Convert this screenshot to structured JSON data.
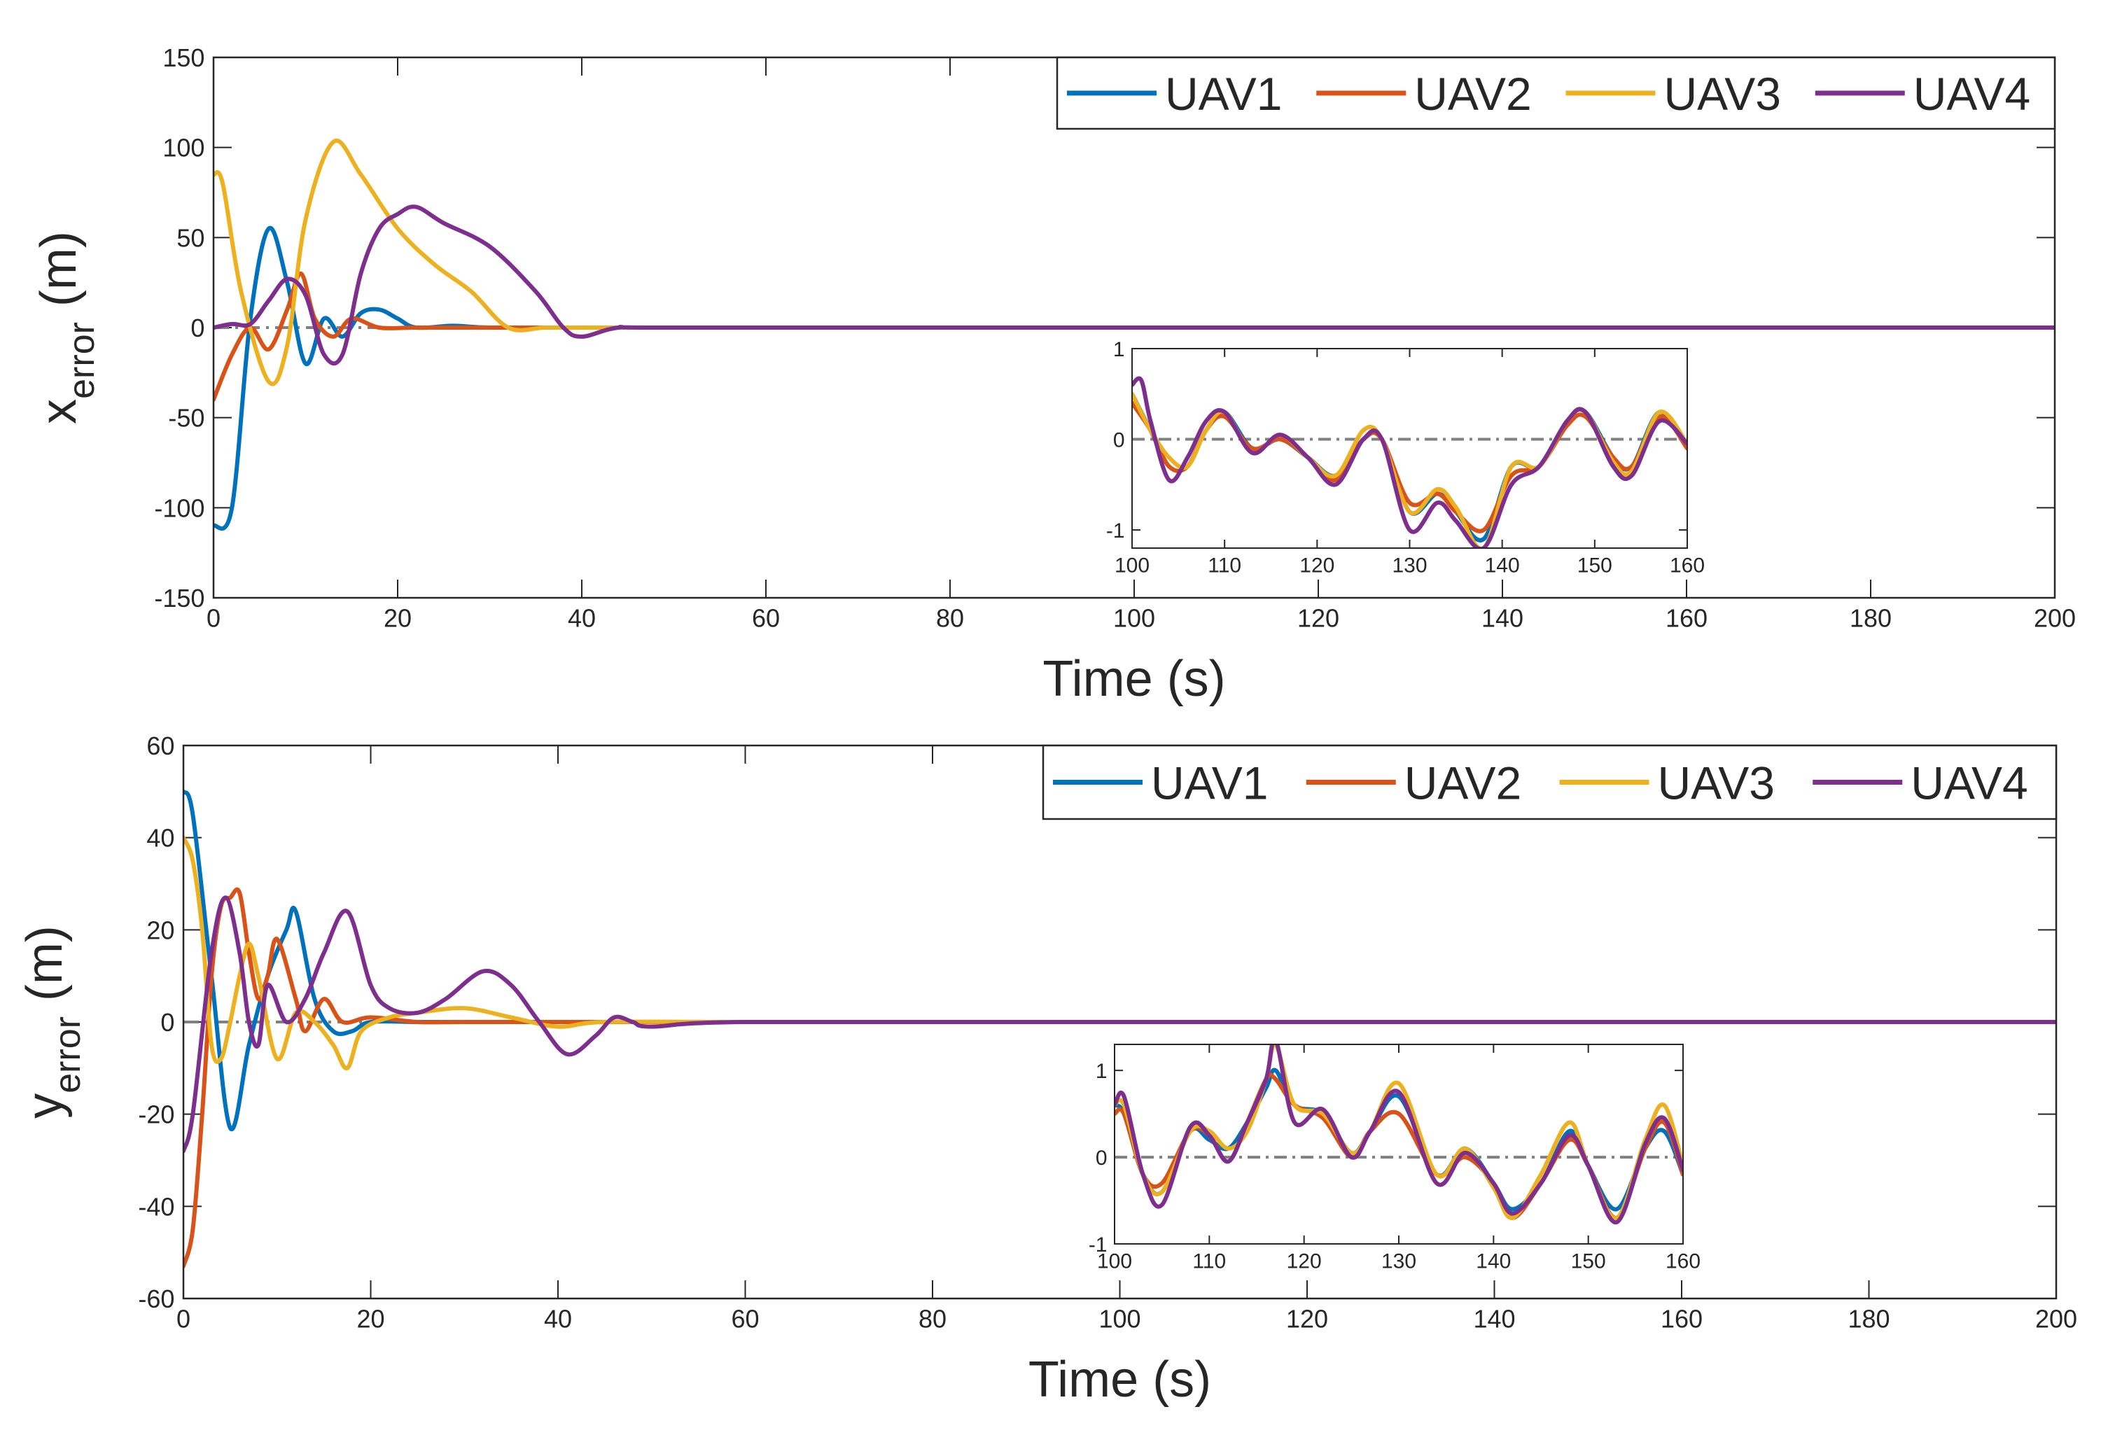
{
  "colors": {
    "UAV1": "#0072BD",
    "UAV2": "#D95319",
    "UAV3": "#EDB120",
    "UAV4": "#7E2F8E",
    "reference": "#808080"
  },
  "chart_data": [
    {
      "type": "line",
      "id": "x-error",
      "ylabel_base": "x",
      "ylabel_sub": "error",
      "ylabel_unit": "(m)",
      "xlabel": "Time (s)",
      "xlim": [
        0,
        200
      ],
      "ylim": [
        -150,
        150
      ],
      "xticks": [
        0,
        20,
        40,
        60,
        80,
        100,
        120,
        140,
        160,
        180,
        200
      ],
      "yticks": [
        -150,
        -100,
        -50,
        0,
        50,
        100,
        150
      ],
      "legend": {
        "placement": "top-right",
        "entries": [
          "UAV1",
          "UAV2",
          "UAV3",
          "UAV4"
        ]
      },
      "reference_line": 0,
      "series": [
        {
          "name": "UAV1",
          "x": [
            0,
            2,
            4,
            6,
            8,
            10,
            12,
            14,
            16,
            18,
            20,
            22,
            26,
            30,
            40,
            60,
            100,
            140,
            200
          ],
          "y": [
            -110,
            -100,
            5,
            55,
            25,
            -20,
            5,
            -5,
            8,
            10,
            5,
            0,
            1,
            0,
            0,
            0,
            0,
            0,
            0
          ]
        },
        {
          "name": "UAV2",
          "x": [
            0,
            2,
            4,
            6,
            8,
            9.5,
            11,
            13,
            15,
            18,
            22,
            30,
            40,
            60,
            100,
            200
          ],
          "y": [
            -40,
            -15,
            0,
            -12,
            10,
            30,
            5,
            -5,
            5,
            0,
            0,
            0,
            0,
            0,
            0,
            0
          ]
        },
        {
          "name": "UAV3",
          "x": [
            0,
            1,
            3,
            6,
            8,
            10,
            13,
            16,
            20,
            24,
            28,
            32,
            36,
            40,
            44,
            60,
            100,
            200
          ],
          "y": [
            85,
            80,
            20,
            -30,
            -10,
            60,
            103,
            85,
            55,
            35,
            20,
            0,
            0,
            0,
            0,
            0,
            0,
            0
          ]
        },
        {
          "name": "UAV4",
          "x": [
            0,
            2,
            4,
            6,
            8,
            10,
            12,
            14,
            16,
            18,
            20,
            22,
            25,
            30,
            35,
            38,
            40,
            44,
            50,
            100,
            200
          ],
          "y": [
            0,
            2,
            2,
            15,
            27,
            18,
            -15,
            -15,
            30,
            55,
            63,
            67,
            58,
            45,
            20,
            0,
            -5,
            0,
            0,
            0,
            0
          ]
        }
      ],
      "inset": {
        "xlim": [
          100,
          160
        ],
        "ylim": [
          -1.2,
          1
        ],
        "xticks": [
          100,
          110,
          120,
          130,
          140,
          150,
          160
        ],
        "yticks": [
          -1,
          0,
          1
        ],
        "series": [
          {
            "name": "UAV1",
            "x": [
              100,
              102,
              104,
              106,
              108,
              110,
              113,
              116,
              119,
              122,
              125,
              127,
              130,
              133,
              135,
              138,
              141,
              144,
              147,
              149,
              152,
              154,
              157,
              160
            ],
            "y": [
              0.5,
              0.1,
              -0.3,
              -0.3,
              0.1,
              0.3,
              -0.1,
              0.0,
              -0.2,
              -0.4,
              0.0,
              0.0,
              -0.8,
              -0.6,
              -0.8,
              -1.1,
              -0.3,
              -0.3,
              0.2,
              0.3,
              -0.2,
              -0.3,
              0.3,
              -0.1
            ]
          },
          {
            "name": "UAV2",
            "x": [
              100,
              102,
              104,
              106,
              108,
              110,
              113,
              116,
              119,
              122,
              125,
              127,
              130,
              133,
              135,
              138,
              141,
              144,
              147,
              149,
              152,
              154,
              157,
              160
            ],
            "y": [
              0.4,
              0.1,
              -0.3,
              -0.3,
              0.1,
              0.25,
              -0.1,
              0.0,
              -0.2,
              -0.45,
              0.0,
              0.0,
              -0.7,
              -0.6,
              -0.8,
              -1.0,
              -0.4,
              -0.3,
              0.15,
              0.25,
              -0.2,
              -0.3,
              0.25,
              -0.1
            ]
          },
          {
            "name": "UAV3",
            "x": [
              100,
              102,
              104,
              106,
              108,
              110,
              113,
              116,
              119,
              122,
              125,
              127,
              130,
              133,
              135,
              138,
              141,
              144,
              147,
              149,
              152,
              154,
              157,
              160
            ],
            "y": [
              0.5,
              0.1,
              -0.2,
              -0.3,
              0.1,
              0.3,
              -0.15,
              0.05,
              -0.2,
              -0.4,
              0.1,
              0.0,
              -0.8,
              -0.55,
              -0.75,
              -1.2,
              -0.3,
              -0.3,
              0.2,
              0.3,
              -0.25,
              -0.35,
              0.3,
              -0.05
            ]
          },
          {
            "name": "UAV4",
            "x": [
              100,
              101,
              102,
              104,
              106,
              108,
              110,
              113,
              116,
              119,
              122,
              125,
              127,
              130,
              133,
              135,
              138,
              141,
              144,
              147,
              149,
              152,
              154,
              157,
              160
            ],
            "y": [
              0.6,
              0.65,
              0.2,
              -0.45,
              -0.2,
              0.2,
              0.3,
              -0.15,
              0.05,
              -0.2,
              -0.5,
              0.0,
              0.0,
              -1.0,
              -0.7,
              -0.9,
              -1.2,
              -0.5,
              -0.3,
              0.2,
              0.3,
              -0.3,
              -0.4,
              0.2,
              -0.05
            ]
          }
        ]
      }
    },
    {
      "type": "line",
      "id": "y-error",
      "ylabel_base": "y",
      "ylabel_sub": "error",
      "ylabel_unit": "(m)",
      "xlabel": "Time (s)",
      "xlim": [
        0,
        200
      ],
      "ylim": [
        -60,
        60
      ],
      "xticks": [
        0,
        20,
        40,
        60,
        80,
        100,
        120,
        140,
        160,
        180,
        200
      ],
      "yticks": [
        -60,
        -40,
        -20,
        0,
        20,
        40,
        60
      ],
      "legend": {
        "placement": "top-right",
        "entries": [
          "UAV1",
          "UAV2",
          "UAV3",
          "UAV4"
        ]
      },
      "reference_line": 0,
      "series": [
        {
          "name": "UAV1",
          "x": [
            0,
            1,
            3,
            5,
            7,
            9,
            11,
            12,
            14,
            16,
            18,
            20,
            25,
            30,
            40,
            60,
            100,
            200
          ],
          "y": [
            50,
            45,
            10,
            -23,
            -5,
            10,
            20,
            24,
            5,
            -2,
            -2,
            0,
            0,
            0,
            0,
            0,
            0,
            0
          ]
        },
        {
          "name": "UAV2",
          "x": [
            0,
            1,
            2,
            3,
            4,
            5,
            6,
            7,
            8,
            9,
            10,
            12,
            13,
            15,
            17,
            20,
            25,
            30,
            40,
            60,
            100,
            200
          ],
          "y": [
            -53,
            -45,
            -20,
            10,
            25,
            27,
            28,
            15,
            5,
            10,
            18,
            5,
            -2,
            5,
            0,
            1,
            0,
            0,
            0,
            0,
            0,
            0
          ]
        },
        {
          "name": "UAV3",
          "x": [
            0,
            1,
            2,
            3,
            4,
            5,
            6,
            7,
            8,
            10,
            12,
            14,
            16,
            17.5,
            19,
            22,
            25,
            30,
            35,
            40,
            45,
            60,
            100,
            200
          ],
          "y": [
            40,
            35,
            20,
            -5,
            -8,
            0,
            10,
            17,
            10,
            -8,
            2,
            0,
            -5,
            -10,
            -2,
            1,
            2,
            3,
            1,
            -1,
            0,
            0,
            0,
            0
          ]
        },
        {
          "name": "UAV4",
          "x": [
            0,
            1,
            3,
            4.5,
            6,
            7,
            8,
            9,
            11,
            13,
            15,
            17.5,
            20,
            22,
            25,
            28,
            32,
            35,
            38,
            41,
            44,
            46,
            48,
            50,
            60,
            100,
            200
          ],
          "y": [
            -28,
            -20,
            15,
            27,
            15,
            0,
            -5,
            8,
            0,
            5,
            15,
            24,
            8,
            3,
            2,
            5,
            11,
            8,
            0,
            -7,
            -3,
            1,
            0,
            -1,
            0,
            0,
            0
          ]
        }
      ],
      "inset": {
        "xlim": [
          100,
          160
        ],
        "ylim": [
          -1,
          1.3
        ],
        "xticks": [
          100,
          110,
          120,
          130,
          140,
          150,
          160
        ],
        "yticks": [
          -1,
          0,
          1
        ],
        "series": [
          {
            "name": "UAV1",
            "x": [
              100,
              101,
              103,
              105,
              108,
              110,
              112,
              114,
              116,
              117,
              119,
              122,
              125,
              127,
              130,
              134,
              137,
              140,
              142,
              145,
              148,
              150,
              153,
              156,
              158,
              160
            ],
            "y": [
              0.6,
              0.5,
              -0.2,
              -0.4,
              0.3,
              0.2,
              0.1,
              0.4,
              0.8,
              1.0,
              0.6,
              0.5,
              0.05,
              0.3,
              0.7,
              -0.2,
              0.1,
              -0.3,
              -0.6,
              -0.3,
              0.3,
              -0.1,
              -0.6,
              0.1,
              0.3,
              -0.2
            ]
          },
          {
            "name": "UAV2",
            "x": [
              100,
              101,
              103,
              105,
              108,
              110,
              112,
              114,
              116,
              117,
              119,
              122,
              125,
              127,
              130,
              134,
              137,
              140,
              142,
              145,
              148,
              150,
              153,
              156,
              158,
              160
            ],
            "y": [
              0.5,
              0.5,
              -0.2,
              -0.3,
              0.3,
              0.25,
              -0.05,
              0.4,
              0.9,
              0.9,
              0.6,
              0.45,
              0.0,
              0.3,
              0.5,
              -0.2,
              0.0,
              -0.3,
              -0.7,
              -0.3,
              0.2,
              -0.1,
              -0.7,
              0.1,
              0.4,
              -0.2
            ]
          },
          {
            "name": "UAV3",
            "x": [
              100,
              101,
              103,
              105,
              108,
              110,
              112,
              114,
              116,
              117,
              119,
              122,
              125,
              127,
              130,
              134,
              137,
              140,
              142,
              145,
              148,
              150,
              153,
              156,
              158,
              160
            ],
            "y": [
              0.6,
              0.6,
              -0.2,
              -0.4,
              0.3,
              0.3,
              0.1,
              0.3,
              0.9,
              1.3,
              0.6,
              0.5,
              0.05,
              0.3,
              0.85,
              -0.2,
              0.1,
              -0.35,
              -0.7,
              -0.2,
              0.4,
              -0.1,
              -0.7,
              0.2,
              0.6,
              -0.1
            ]
          },
          {
            "name": "UAV4",
            "x": [
              100,
              101,
              103,
              105,
              108,
              110,
              112,
              114,
              116,
              117,
              119,
              122,
              125,
              127,
              130,
              134,
              137,
              140,
              142,
              145,
              148,
              150,
              153,
              156,
              158,
              160
            ],
            "y": [
              0.6,
              0.7,
              -0.2,
              -0.55,
              0.35,
              0.25,
              -0.05,
              0.4,
              0.9,
              1.35,
              0.4,
              0.55,
              0.0,
              0.3,
              0.75,
              -0.3,
              0.05,
              -0.3,
              -0.65,
              -0.3,
              0.25,
              -0.1,
              -0.75,
              0.15,
              0.45,
              -0.15
            ]
          }
        ]
      }
    }
  ]
}
